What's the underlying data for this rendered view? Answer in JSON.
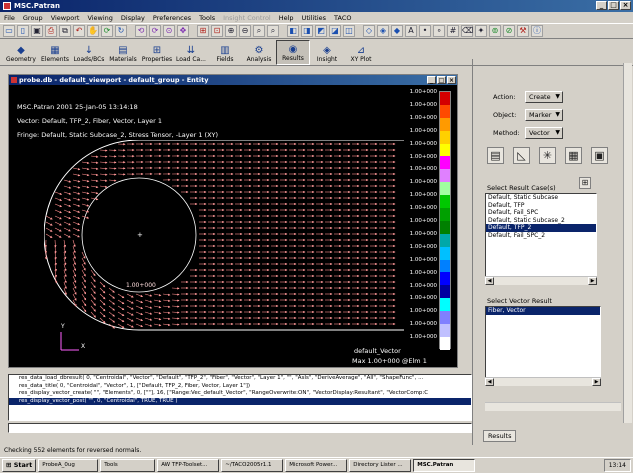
{
  "app": {
    "title": "MSC.Patran"
  },
  "window_controls": {
    "minimize": "_",
    "maximize": "□",
    "close": "×"
  },
  "menu": [
    "File",
    "Group",
    "Viewport",
    "Viewing",
    "Display",
    "Preferences",
    "Tools",
    "Insight Control",
    "Help",
    "Utilities",
    "TACO"
  ],
  "menu_disabled": "Insight Control",
  "app_tabs": [
    {
      "label": "Geometry",
      "icon": "◆"
    },
    {
      "label": "Elements",
      "icon": "▦"
    },
    {
      "label": "Loads/BCs",
      "icon": "↓"
    },
    {
      "label": "Materials",
      "icon": "▤"
    },
    {
      "label": "Properties",
      "icon": "⊞"
    },
    {
      "label": "Load Ca...",
      "icon": "⇊"
    },
    {
      "label": "Fields",
      "icon": "▥"
    },
    {
      "label": "Analysis",
      "icon": "⚙"
    },
    {
      "label": "Results",
      "icon": "◉"
    },
    {
      "label": "Insight",
      "icon": "◈"
    },
    {
      "label": "XY Plot",
      "icon": "⊿"
    }
  ],
  "active_tab": "Results",
  "viewport": {
    "title": "probe.db - default_viewport - default_group - Entity",
    "header_line1": "MSC.Patran 2001 25-Jan-05 13:14:18",
    "header_line2": "Vector: Default, TFP_2, Fiber, Vector, Layer 1",
    "header_line3": "Fringe: Default, Static Subcase_2, Stress Tensor, -Layer 1 (XY)",
    "legend_values": [
      "1.00+000",
      "1.00+000",
      "1.00+000",
      "1.00+000",
      "1.00+000",
      "1.00+000",
      "1.00+000",
      "1.00+000",
      "1.00+000",
      "1.00+000",
      "1.00+000",
      "1.00+000",
      "1.00+000",
      "1.00+000",
      "1.00+000",
      "1.00+000",
      "1.00+000",
      "1.00+000",
      "1.00+000",
      "1.00+000"
    ],
    "legend_colors": [
      "#d40000",
      "#ff4a00",
      "#ff9a00",
      "#ffd000",
      "#ffff00",
      "#ff00ff",
      "#e080ff",
      "#a0ffa0",
      "#00c800",
      "#00a000",
      "#008000",
      "#00a8a8",
      "#00c0ff",
      "#0080ff",
      "#0000ff",
      "#0000a0",
      "#00ffff",
      "#8080ff",
      "#c0c0ff",
      "#ffffff"
    ],
    "node_label": "1.00+000",
    "footer_line1": "default_Vector",
    "footer_line2": "Max 1.00+000 @Elm 1",
    "axis_y": "Y",
    "axis_x": "X"
  },
  "right_panel": {
    "action_label": "Action:",
    "action_value": "Create",
    "object_label": "Object:",
    "object_value": "Marker",
    "method_label": "Method:",
    "method_value": "Vector",
    "result_cases_label": "Select Result Case(s)",
    "result_cases": [
      "Default, Static Subcase",
      "Default, TFP",
      "Default, Fail_SPC",
      "Default, Static Subcase_2",
      "Default, TFP_2",
      "Default, Fail_SPC_2"
    ],
    "result_cases_selected": 4,
    "vector_result_label": "Select Vector Result",
    "vector_results": [
      "Fiber, Vector"
    ],
    "vector_results_selected": 0,
    "bottom_tab": "Results"
  },
  "history": [
    "res_data_load_dbresult( 0, \"Centroidal\", \"Vector\", \"Default\", \"TFP_2\", \"Fiber\", \"Vector\", \"Layer 1\", \"\", \"AsIs\", \"DeriveAverage\", \"All\", \"ShapeFunc\", ...",
    "res_data_title( 0, \"Centroidal\", \"Vector\", 1, [\"Default, TFP_2, Fiber, Vector, Layer 1\"])",
    "res_display_vector_create( \"\", \"Elements\", 0, [\"\"], 16, [\"Range:Vec_default_Vector\", \"RangeOverwrite:ON\", \"VectorDisplay:Resultant\", \"VectorComp:C",
    "res_display_vector_post( \"\", 0, \"Centroidal\", TRUE, TRUE )"
  ],
  "history_selected": 3,
  "status_message": "Checking 552 elements for reversed normals.",
  "taskbar": {
    "start": "Start",
    "items": [
      "ProbeA_0ug",
      "Tools",
      "AW TFP-Toolset...",
      "~/TACO2005r1.1",
      "Microsoft Power...",
      "Directory Lister ...",
      "MSC.Patran"
    ],
    "active": "MSC.Patran",
    "clock": "13:14"
  }
}
